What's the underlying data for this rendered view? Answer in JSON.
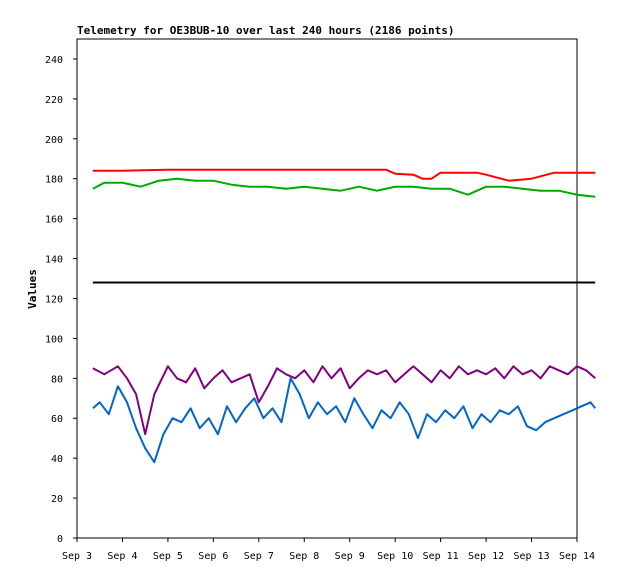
{
  "chart_data": {
    "type": "line",
    "title": "Telemetry for OE3BUB-10 over last 240 hours (2186 points)",
    "xlabel": "",
    "ylabel": "Values",
    "x_ticks": [
      "Sep 3",
      "Sep 4",
      "Sep 5",
      "Sep 6",
      "Sep 7",
      "Sep 8",
      "Sep 9",
      "Sep 10",
      "Sep 11",
      "Sep 12",
      "Sep 13",
      "Sep 14"
    ],
    "xlim": [
      "Sep 3",
      "Sep 14"
    ],
    "ylim": [
      0,
      250
    ],
    "y_ticks": [
      0,
      20,
      40,
      60,
      80,
      100,
      120,
      140,
      160,
      180,
      200,
      220,
      240
    ],
    "grid": false,
    "legend": "none",
    "x_unit": "days since Sep 3 00:00",
    "series": [
      {
        "color": "#ff0000",
        "x": [
          0.35,
          1.0,
          2.0,
          3.0,
          4.0,
          5.0,
          6.0,
          6.8,
          7.0,
          7.4,
          7.6,
          7.8,
          8.0,
          8.8,
          9.0,
          9.5,
          10.0,
          10.5,
          11.0,
          11.4
        ],
        "y": [
          184,
          184,
          184.5,
          184.5,
          184.5,
          184.5,
          184.5,
          184.5,
          182.5,
          182,
          180,
          180,
          183,
          183,
          182,
          179,
          180,
          183,
          183,
          183
        ]
      },
      {
        "color": "#00aa00",
        "x": [
          0.35,
          0.6,
          1.0,
          1.4,
          1.8,
          2.2,
          2.6,
          3.0,
          3.4,
          3.8,
          4.2,
          4.6,
          5.0,
          5.4,
          5.8,
          6.2,
          6.6,
          7.0,
          7.4,
          7.8,
          8.2,
          8.6,
          9.0,
          9.4,
          9.8,
          10.2,
          10.6,
          11.0,
          11.4
        ],
        "y": [
          175,
          178,
          178,
          176,
          179,
          180,
          179,
          179,
          177,
          176,
          176,
          175,
          176,
          175,
          174,
          176,
          174,
          176,
          176,
          175,
          175,
          172,
          176,
          176,
          175,
          174,
          174,
          172,
          171
        ]
      },
      {
        "color": "#000000",
        "x": [
          0.35,
          11.4
        ],
        "y": [
          128,
          128
        ]
      },
      {
        "color": "#800080",
        "x": [
          0.35,
          0.6,
          0.9,
          1.1,
          1.3,
          1.5,
          1.7,
          2.0,
          2.2,
          2.4,
          2.6,
          2.8,
          3.0,
          3.2,
          3.4,
          3.6,
          3.8,
          4.0,
          4.2,
          4.4,
          4.6,
          4.8,
          5.0,
          5.2,
          5.4,
          5.6,
          5.8,
          6.0,
          6.2,
          6.4,
          6.6,
          6.8,
          7.0,
          7.2,
          7.4,
          7.6,
          7.8,
          8.0,
          8.2,
          8.4,
          8.6,
          8.8,
          9.0,
          9.2,
          9.4,
          9.6,
          9.8,
          10.0,
          10.2,
          10.4,
          10.6,
          10.8,
          11.0,
          11.2,
          11.4
        ],
        "y": [
          85,
          82,
          86,
          80,
          72,
          52,
          72,
          86,
          80,
          78,
          85,
          75,
          80,
          84,
          78,
          80,
          82,
          68,
          76,
          85,
          82,
          80,
          84,
          78,
          86,
          80,
          85,
          75,
          80,
          84,
          82,
          84,
          78,
          82,
          86,
          82,
          78,
          84,
          80,
          86,
          82,
          84,
          82,
          85,
          80,
          86,
          82,
          84,
          80,
          86,
          84,
          82,
          86,
          84,
          80
        ]
      },
      {
        "color": "#0066cc",
        "x": [
          0.35,
          0.5,
          0.7,
          0.9,
          1.1,
          1.3,
          1.5,
          1.7,
          1.9,
          2.1,
          2.3,
          2.5,
          2.7,
          2.9,
          3.1,
          3.3,
          3.5,
          3.7,
          3.9,
          4.1,
          4.3,
          4.5,
          4.7,
          4.9,
          5.1,
          5.3,
          5.5,
          5.7,
          5.9,
          6.1,
          6.3,
          6.5,
          6.7,
          6.9,
          7.1,
          7.3,
          7.5,
          7.7,
          7.9,
          8.1,
          8.3,
          8.5,
          8.7,
          8.9,
          9.1,
          9.3,
          9.5,
          9.7,
          9.9,
          10.1,
          10.3,
          10.5,
          10.7,
          10.9,
          11.1,
          11.3,
          11.4
        ],
        "y": [
          65,
          68,
          62,
          76,
          68,
          55,
          45,
          38,
          52,
          60,
          58,
          65,
          55,
          60,
          52,
          66,
          58,
          65,
          70,
          60,
          65,
          58,
          80,
          72,
          60,
          68,
          62,
          66,
          58,
          70,
          62,
          55,
          64,
          60,
          68,
          62,
          50,
          62,
          58,
          64,
          60,
          66,
          55,
          62,
          58,
          64,
          62,
          66,
          56,
          54,
          58,
          60,
          62,
          64,
          66,
          68,
          65
        ]
      }
    ]
  }
}
